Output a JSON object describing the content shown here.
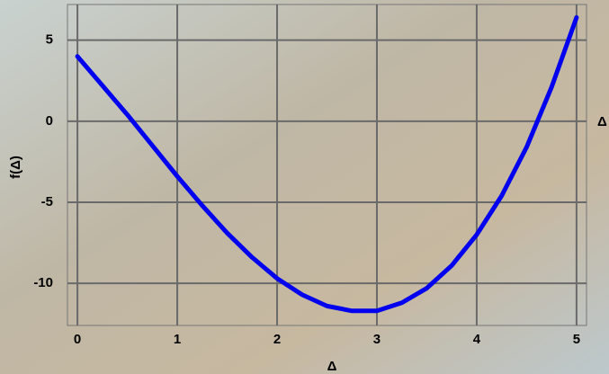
{
  "chart_data": {
    "type": "line",
    "x_label": "Δ",
    "y_label": "f(Δ)",
    "axis_label": "Δ",
    "x": [
      0,
      0.25,
      0.5,
      0.75,
      1,
      1.25,
      1.5,
      1.75,
      2,
      2.25,
      2.5,
      2.75,
      3,
      3.25,
      3.5,
      3.75,
      4,
      4.25,
      4.5,
      4.75,
      5
    ],
    "series": [
      {
        "color": "#0000ee",
        "values": [
          4,
          2.2,
          0.4,
          -1.5,
          -3.4,
          -5.2,
          -6.9,
          -8.4,
          -9.7,
          -10.7,
          -11.4,
          -11.7,
          -11.7,
          -11.2,
          -10.3,
          -8.9,
          -7.0,
          -4.6,
          -1.6,
          2.1,
          6.4
        ]
      }
    ],
    "xlim": [
      -0.1,
      5.1
    ],
    "ylim": [
      -12.6,
      7.2
    ],
    "xticks": [
      0,
      1,
      2,
      3,
      4,
      5
    ],
    "yticks": [
      -10,
      -5,
      0,
      5
    ],
    "grid": true
  }
}
